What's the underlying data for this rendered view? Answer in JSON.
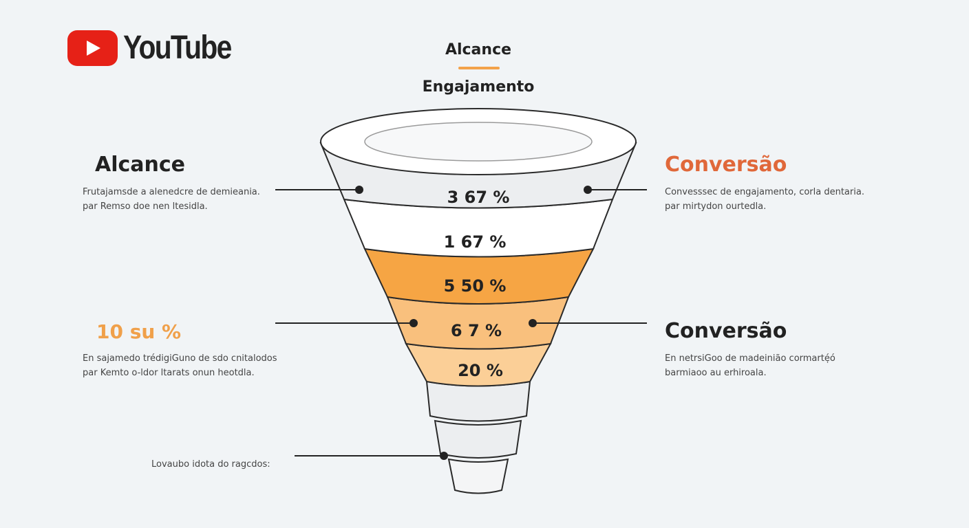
{
  "logo": {
    "text": "YouTube",
    "icon": "youtube-play-icon",
    "color": "#e62117"
  },
  "header": {
    "title": "Alcance",
    "subtitle": "Engajamento",
    "accent": "#f3a24a"
  },
  "left": [
    {
      "title": "Alcance",
      "desc1": "Frutajamsde a alenedcre de demieania.",
      "desc2": "par Remso doe nen ltesidla."
    },
    {
      "title": "10 su %",
      "desc1": "En sajamedo trédigiGuno de sdo cnitalodos",
      "desc2": "par Kemto o-ldor ltarats onun heotdla."
    }
  ],
  "right": [
    {
      "title": "Conversão",
      "desc1": "Convesssec de engajamento, corla dentaria.",
      "desc2": "par mirtydon ourtedla."
    },
    {
      "title": "Conversão",
      "desc1": "En netrsiGoo de madeinião cormarté̜ó",
      "desc2": "barmiaoo au erhiroala."
    }
  ],
  "bottom_label": "Lovaubo idota do ragcdos:",
  "funnel": [
    {
      "label": "3 67 %",
      "color": "#eceef0"
    },
    {
      "label": "1 67 %",
      "color": "#ffffff"
    },
    {
      "label": "5 50 %",
      "color": "#f6a544"
    },
    {
      "label": "6 7 %",
      "color": "#f9c07d"
    },
    {
      "label": "20 %",
      "color": "#fbcf97"
    },
    {
      "label": "",
      "color": "#eceef0"
    },
    {
      "label": "",
      "color": "#eceef0"
    },
    {
      "label": "",
      "color": "#f4f5f6"
    }
  ],
  "colors": {
    "orange_title": "#e0683a",
    "orange_pct": "#f0a04a"
  }
}
